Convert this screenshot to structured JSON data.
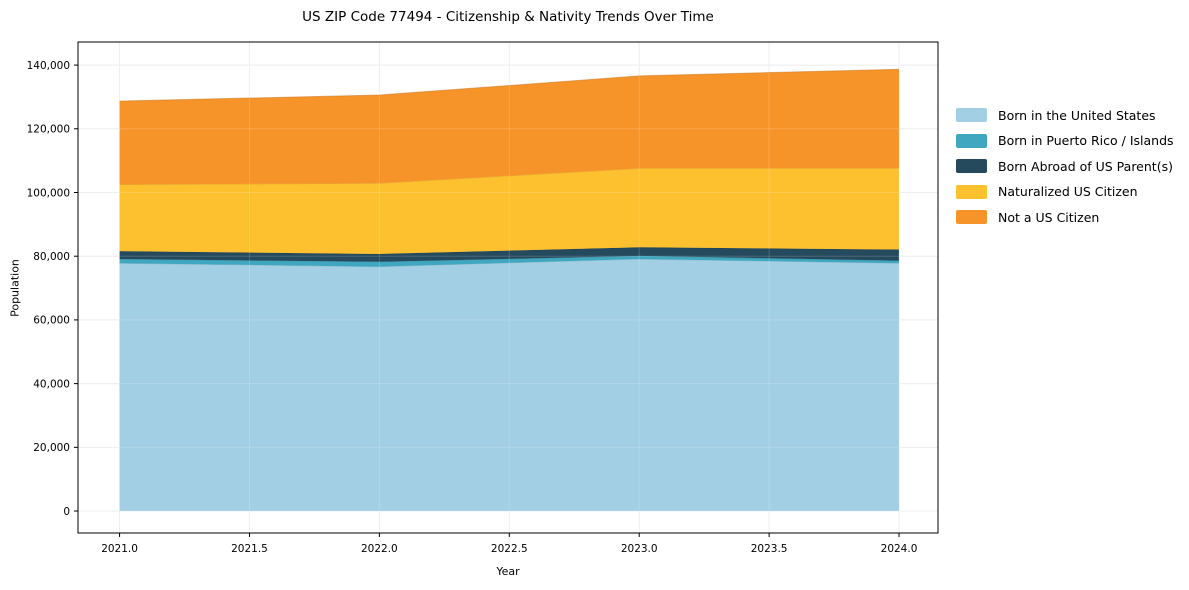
{
  "chart_data": {
    "type": "area",
    "stacked": true,
    "title": "US ZIP Code 77494 - Citizenship & Nativity Trends Over Time",
    "xlabel": "Year",
    "ylabel": "Population",
    "x": [
      2021,
      2022,
      2023,
      2024
    ],
    "series": [
      {
        "name": "Born in the United States",
        "color": "#a3cfe4",
        "values": [
          77800,
          76700,
          79100,
          77800
        ]
      },
      {
        "name": "Born in Puerto Rico / Islands",
        "color": "#3fa8c0",
        "values": [
          1300,
          1550,
          1000,
          800
        ]
      },
      {
        "name": "Born Abroad of US Parent(s)",
        "color": "#254a5e",
        "values": [
          2500,
          2450,
          2700,
          3500
        ]
      },
      {
        "name": "Naturalized US Citizen",
        "color": "#fdc02f",
        "values": [
          20900,
          22200,
          24800,
          25500
        ]
      },
      {
        "name": "Not a US Citizen",
        "color": "#f79429",
        "values": [
          26200,
          27700,
          29000,
          31100
        ]
      }
    ],
    "totals": [
      128700,
      130600,
      136600,
      138700
    ],
    "x_tick_labels": [
      "2021.0",
      "2021.5",
      "2022.0",
      "2022.5",
      "2023.0",
      "2023.5",
      "2024.0"
    ],
    "x_tick_values": [
      2021,
      2021.5,
      2022,
      2022.5,
      2023,
      2023.5,
      2024
    ],
    "y_tick_labels": [
      "0",
      "20,000",
      "40,000",
      "60,000",
      "80,000",
      "100,000",
      "120,000",
      "140,000"
    ],
    "y_tick_values": [
      0,
      20000,
      40000,
      60000,
      80000,
      100000,
      120000,
      140000
    ],
    "xlim": [
      2020.84,
      2024.15
    ],
    "ylim": [
      -6900,
      147250
    ],
    "grid": true,
    "legend_position": "outside-right",
    "colors": {
      "background": "#ffffff",
      "grid": "#ececec",
      "axis": "#000000",
      "text": "#000000"
    }
  }
}
